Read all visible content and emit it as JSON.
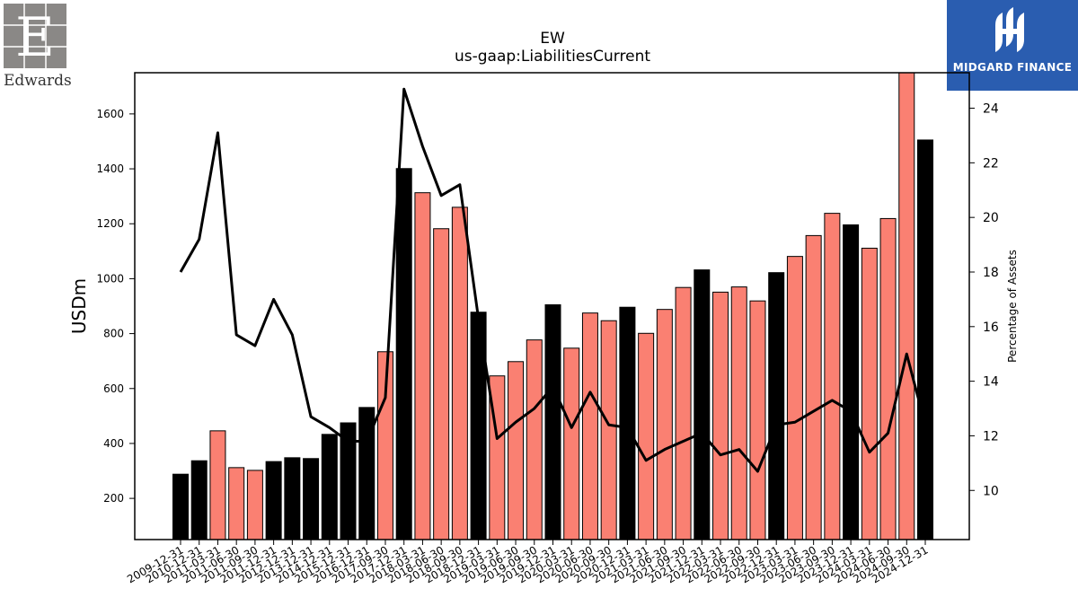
{
  "logos": {
    "left": {
      "name": "Edwards",
      "text": "Edwards"
    },
    "right": {
      "name": "Midgard Finance",
      "text": "MIDGARD FINANCE"
    }
  },
  "colors": {
    "bar_highlight": "#000000",
    "bar_normal": "#fa8072",
    "line": "#000000",
    "logo_right_bg": "#2a5db0"
  },
  "chart_data": {
    "type": "bar",
    "title": "EW",
    "subtitle": "us-gaap:LiabilitiesCurrent",
    "ylabel": "USDm",
    "y2label": "Percentage of Assets",
    "ylim": [
      50,
      1750
    ],
    "y2lim": [
      8.2,
      25.3
    ],
    "yticks": [
      200,
      400,
      600,
      800,
      1000,
      1200,
      1400,
      1600
    ],
    "y2ticks": [
      10,
      12,
      14,
      16,
      18,
      20,
      22,
      24
    ],
    "categories": [
      "2009-12-31",
      "2010-12-31",
      "2011-03-31",
      "2011-06-30",
      "2011-09-30",
      "2011-12-31",
      "2012-12-31",
      "2013-12-31",
      "2014-12-31",
      "2015-12-31",
      "2016-12-31",
      "2017-09-30",
      "2017-12-31",
      "2018-03-31",
      "2018-06-30",
      "2018-09-30",
      "2018-12-31",
      "2019-03-31",
      "2019-06-30",
      "2019-09-30",
      "2019-12-31",
      "2020-03-31",
      "2020-06-30",
      "2020-09-30",
      "2020-12-31",
      "2021-03-31",
      "2021-06-30",
      "2021-09-30",
      "2021-12-31",
      "2022-03-31",
      "2022-06-30",
      "2022-09-30",
      "2022-12-31",
      "2023-03-31",
      "2023-06-30",
      "2023-09-30",
      "2023-12-31",
      "2024-03-31",
      "2024-06-30",
      "2024-09-30",
      "2024-12-31"
    ],
    "series": [
      {
        "type": "bar",
        "values": [
          288,
          337,
          446,
          312,
          302,
          334,
          348,
          345,
          433,
          475,
          531,
          734,
          1401,
          1313,
          1182,
          1260,
          878,
          646,
          698,
          777,
          905,
          747,
          875,
          847,
          896,
          801,
          888,
          968,
          1032,
          951,
          970,
          919,
          1022,
          1081,
          1157,
          1238,
          1196,
          1111,
          1219,
          1750,
          1505
        ],
        "highlight": [
          true,
          true,
          false,
          false,
          false,
          true,
          true,
          true,
          true,
          true,
          true,
          false,
          true,
          false,
          false,
          false,
          true,
          false,
          false,
          false,
          true,
          false,
          false,
          false,
          true,
          false,
          false,
          false,
          true,
          false,
          false,
          false,
          true,
          false,
          false,
          false,
          true,
          false,
          false,
          false,
          true
        ]
      },
      {
        "type": "line",
        "axis": "right",
        "values": [
          18.0,
          19.2,
          23.1,
          15.7,
          15.3,
          17.0,
          15.7,
          12.7,
          12.3,
          11.8,
          11.8,
          13.4,
          24.7,
          22.6,
          20.8,
          21.2,
          16.3,
          11.9,
          12.5,
          13.0,
          13.8,
          12.3,
          13.6,
          12.4,
          12.3,
          11.1,
          11.5,
          11.8,
          12.1,
          11.3,
          11.5,
          10.7,
          12.4,
          12.5,
          12.9,
          13.3,
          12.9,
          11.4,
          12.1,
          15.0,
          12.4
        ]
      }
    ],
    "legend": "none",
    "grid": false
  }
}
